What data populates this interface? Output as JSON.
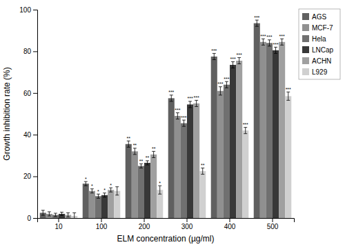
{
  "chart_data": {
    "type": "bar",
    "xlabel": "ELM concentration (µg/ml)",
    "ylabel": "Growth inhibition rate (%)",
    "categories": [
      "10",
      "100",
      "200",
      "300",
      "400",
      "500"
    ],
    "series": [
      {
        "name": "AGS",
        "color": "#606060",
        "values": [
          2.5,
          16.5,
          35.5,
          57.5,
          77.5,
          93.5
        ],
        "errors": [
          1.2,
          1.0,
          1.5,
          1.5,
          1.5,
          1.5
        ],
        "significance": [
          null,
          "*",
          "**",
          "***",
          "***",
          "***"
        ]
      },
      {
        "name": "MCF-7",
        "color": "#909090",
        "values": [
          2.0,
          13.0,
          32.0,
          49.0,
          61.0,
          84.5
        ],
        "errors": [
          1.0,
          1.0,
          1.5,
          1.5,
          2.0,
          1.5
        ],
        "significance": [
          null,
          "*",
          "**",
          "***",
          "***",
          "***"
        ]
      },
      {
        "name": "Hela",
        "color": "#707070",
        "values": [
          1.5,
          10.5,
          25.0,
          45.5,
          64.0,
          84.0
        ],
        "errors": [
          0.8,
          1.0,
          1.0,
          1.5,
          1.5,
          1.5
        ],
        "significance": [
          null,
          "*",
          "**",
          "***",
          "***",
          "***"
        ]
      },
      {
        "name": "LNCap",
        "color": "#383838",
        "values": [
          2.0,
          11.0,
          26.5,
          54.5,
          73.5,
          80.5
        ],
        "errors": [
          0.8,
          1.0,
          1.0,
          1.5,
          1.5,
          1.5
        ],
        "significance": [
          null,
          "*",
          "**",
          "***",
          "***",
          "***"
        ]
      },
      {
        "name": "ACHN",
        "color": "#a0a0a0",
        "values": [
          1.5,
          13.5,
          30.5,
          55.0,
          75.5,
          84.5
        ],
        "errors": [
          1.0,
          1.0,
          1.5,
          1.5,
          1.5,
          1.5
        ],
        "significance": [
          null,
          "*",
          "**",
          "***",
          "***",
          "***"
        ]
      },
      {
        "name": "L929",
        "color": "#d0d0d0",
        "values": [
          1.0,
          13.0,
          13.5,
          22.5,
          42.0,
          58.5
        ],
        "errors": [
          1.5,
          2.0,
          2.0,
          1.5,
          1.5,
          2.0
        ],
        "significance": [
          null,
          null,
          "*",
          "**",
          "***",
          "***"
        ]
      }
    ],
    "ylim": [
      0,
      100
    ],
    "yticks": [
      0,
      20,
      40,
      60,
      80,
      100
    ],
    "grid": false,
    "legend": "right"
  }
}
